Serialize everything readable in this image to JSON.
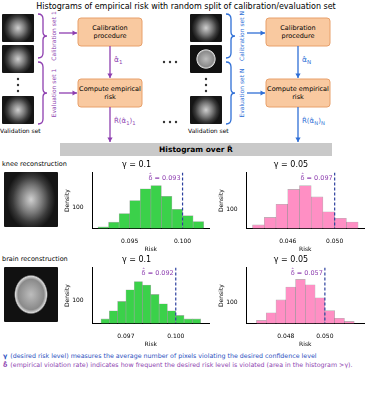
{
  "diagram": {
    "title": "Histograms of empirical risk with random split of calibration/evaluation set",
    "panels": [
      {
        "calibration_set": "Calibration set 1",
        "evaluation_set": "Evaluation set 1",
        "calibration_box": "Calibration procedure",
        "risk_box": "Compute empirical risk",
        "validation": "Validation set",
        "alpha": [
          {
            "t": "α̂"
          },
          {
            "t": "1",
            "sub": true
          }
        ],
        "risk": [
          {
            "t": "R̂(α̂"
          },
          {
            "t": "1",
            "sub": true
          },
          {
            "t": ")"
          },
          {
            "t": "1",
            "sub": true
          }
        ]
      },
      {
        "calibration_set": "Calibration set N",
        "evaluation_set": "Evaluation set N",
        "calibration_box": "Calibration procedure",
        "risk_box": "Compute empirical risk",
        "validation": "Validation set",
        "alpha": [
          {
            "t": "α̂"
          },
          {
            "t": "N",
            "sub": true
          }
        ],
        "risk": [
          {
            "t": "R̂(α̂"
          },
          {
            "t": "N",
            "sub": true
          },
          {
            "t": ")"
          },
          {
            "t": "N",
            "sub": true
          }
        ]
      }
    ],
    "summary": "Histogram over R̂"
  },
  "rows": [
    "knee reconstruction",
    "brain reconstruction"
  ],
  "footer": [
    {
      "symbol": "γ",
      "text": "(desired risk level) measures the average number of pixels violating the desired confidence level"
    },
    {
      "symbol": "δ̂",
      "text": "(empirical violation rate) indicates how frequent the desired risk level is violated (area in the histogram >γ)."
    }
  ],
  "chart_data": [
    {
      "type": "histogram",
      "title": "γ = 0.1",
      "x_label": "Risk",
      "y_label": "Density",
      "bins": [
        0.092,
        0.093,
        0.094,
        0.095,
        0.096,
        0.097,
        0.098,
        0.099,
        0.1,
        0.101,
        0.102
      ],
      "values": [
        8,
        30,
        70,
        130,
        185,
        200,
        150,
        90,
        60,
        33
      ],
      "color": "#3bd14a",
      "xlim": [
        0.0915,
        0.1025
      ],
      "xticks": [
        0.095,
        {
          "value": 0.1,
          "label": "0.100"
        }
      ],
      "ylim": [
        0,
        260
      ],
      "yticks": [
        100
      ],
      "threshold": 0.1,
      "annotation": "δ̂ = 0.093"
    },
    {
      "type": "histogram",
      "title": "γ = 0.05",
      "x_label": "Risk",
      "y_label": "Density",
      "bins": [
        0.043,
        0.044,
        0.045,
        0.046,
        0.047,
        0.048,
        0.049,
        0.05,
        0.051,
        0.052
      ],
      "values": [
        20,
        60,
        130,
        210,
        230,
        170,
        90,
        55,
        35
      ],
      "color": "#ff8fc4",
      "xlim": [
        0.0425,
        0.0525
      ],
      "xticks": [
        0.046,
        {
          "value": 0.05,
          "label": "0.050"
        }
      ],
      "ylim": [
        0,
        300
      ],
      "yticks": [
        100
      ],
      "threshold": 0.05,
      "annotation": "δ̂ = 0.097"
    },
    {
      "type": "histogram",
      "title": "γ = 0.1",
      "x_label": "Risk",
      "y_label": "Density",
      "bins": [
        0.0955,
        0.096,
        0.0965,
        0.097,
        0.0975,
        0.098,
        0.0985,
        0.099,
        0.0995,
        0.1,
        0.1005,
        0.101,
        0.1015
      ],
      "values": [
        20,
        55,
        95,
        145,
        180,
        165,
        125,
        85,
        55,
        35,
        20,
        20
      ],
      "color": "#3bd14a",
      "xlim": [
        0.095,
        0.102
      ],
      "xticks": [
        0.097,
        {
          "value": 0.1,
          "label": "0.100"
        }
      ],
      "ylim": [
        0,
        240
      ],
      "yticks": [
        100
      ],
      "threshold": 0.1,
      "annotation": "δ̂ = 0.092"
    },
    {
      "type": "histogram",
      "title": "γ = 0.05",
      "x_label": "Risk",
      "y_label": "Density",
      "bins": [
        0.0465,
        0.047,
        0.0475,
        0.048,
        0.0485,
        0.049,
        0.0495,
        0.05,
        0.0505,
        0.051,
        0.0515
      ],
      "values": [
        15,
        50,
        110,
        170,
        205,
        180,
        120,
        60,
        25,
        10
      ],
      "color": "#ff8fc4",
      "xlim": [
        0.046,
        0.052
      ],
      "xticks": [
        0.048,
        {
          "value": 0.05,
          "label": "0.050"
        }
      ],
      "ylim": [
        0,
        260
      ],
      "yticks": [
        100
      ],
      "threshold": 0.05,
      "annotation": "δ̂ = 0.057"
    }
  ]
}
